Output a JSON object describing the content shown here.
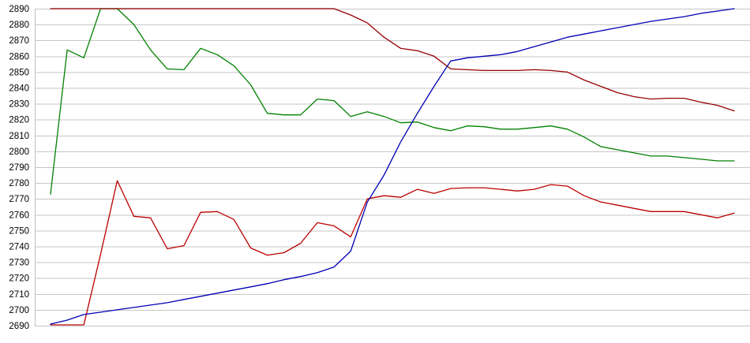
{
  "chart_data": {
    "type": "line",
    "title": "",
    "xlabel": "",
    "ylabel": "",
    "legend_position": "none",
    "x_tick_labels_visible": false,
    "points_per_series": 42,
    "y_axis": {
      "min": 2690,
      "max": 2890,
      "tick_step": 10,
      "tick_labels": [
        "2890",
        "2880",
        "2870",
        "2860",
        "2850",
        "2840",
        "2830",
        "2820",
        "2810",
        "2800",
        "2790",
        "2780",
        "2770",
        "2760",
        "2750",
        "2740",
        "2730",
        "2720",
        "2710",
        "2700",
        "2690"
      ]
    },
    "grid": {
      "horizontal": true,
      "vertical": false,
      "color": "#c6c6c6"
    },
    "axis_color": "#c0c0c0",
    "background": "#ffffff",
    "series": [
      {
        "name": "green-line",
        "color": "#008000",
        "values": [
          2773,
          2864,
          2859,
          2890,
          2890,
          2880,
          2864,
          2852,
          2851.5,
          2865,
          2861,
          2854,
          2842,
          2824,
          2823,
          2823,
          2833,
          2832,
          2822,
          2825,
          2822,
          2818,
          2818.5,
          2815,
          2813,
          2816,
          2815.5,
          2814,
          2814,
          2815,
          2816,
          2814,
          2809,
          2803,
          2801,
          2799,
          2797,
          2797,
          2796,
          2795,
          2794,
          2794
        ]
      },
      {
        "name": "red-line",
        "color": "#bb0000",
        "values": [
          2690.5,
          2690.5,
          2690.5,
          2735,
          2781.5,
          2759,
          2758,
          2738.5,
          2740.5,
          2761.5,
          2762,
          2757,
          2739,
          2734.5,
          2736,
          2742,
          2755,
          2753,
          2746,
          2770,
          2772,
          2771,
          2776,
          2773.5,
          2776.5,
          2777,
          2777,
          2776,
          2775,
          2776,
          2779,
          2778,
          2772,
          2768,
          2766,
          2764,
          2762,
          2762,
          2762,
          2760,
          2758,
          2761
        ]
      },
      {
        "name": "dark-red-line",
        "color": "#990000",
        "values": [
          2890,
          2890,
          2890,
          2890,
          2890,
          2890,
          2890,
          2890,
          2890,
          2890,
          2890,
          2890,
          2890,
          2890,
          2890,
          2890,
          2890,
          2890,
          2886,
          2881,
          2872,
          2865,
          2863.5,
          2860,
          2852,
          2851.5,
          2851,
          2851,
          2851,
          2851.5,
          2851,
          2850,
          2845,
          2841,
          2837,
          2834.5,
          2833,
          2833.5,
          2833.5,
          2831,
          2829,
          2825.5
        ]
      },
      {
        "name": "blue-line",
        "color": "#0000b4",
        "values": [
          2691,
          2693.5,
          2697,
          2698.5,
          2700,
          2701.5,
          2703,
          2704.5,
          2706.5,
          2708.5,
          2710.5,
          2712.5,
          2714.5,
          2716.5,
          2719,
          2721,
          2723.5,
          2727,
          2737,
          2768,
          2785,
          2806,
          2824,
          2841,
          2857,
          2859,
          2860,
          2861,
          2863,
          2866,
          2869,
          2872,
          2874,
          2876,
          2878,
          2880,
          2882,
          2883.5,
          2885,
          2887,
          2888.5,
          2890
        ]
      }
    ]
  }
}
